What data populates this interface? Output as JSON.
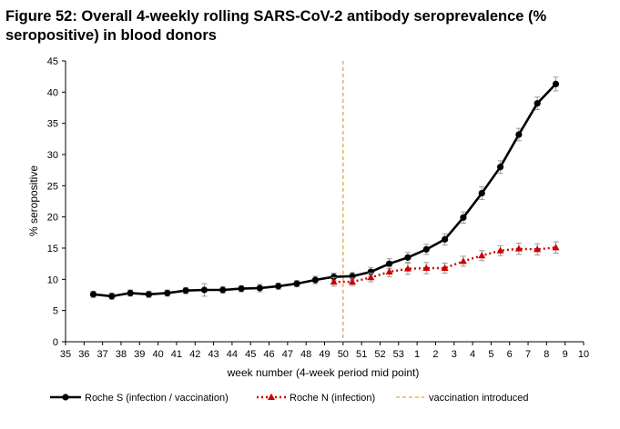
{
  "chart_data": {
    "type": "line",
    "title": "Figure 52: Overall 4-weekly rolling SARS-CoV-2 antibody seroprevalence (% seropositive) in blood donors",
    "xlabel": "week number (4-week period mid point)",
    "ylabel": "% seropositive",
    "ylim": [
      0,
      45
    ],
    "yticks": [
      0,
      5,
      10,
      15,
      20,
      25,
      30,
      35,
      40,
      45
    ],
    "categories": [
      "35",
      "36",
      "37",
      "38",
      "39",
      "40",
      "41",
      "42",
      "43",
      "44",
      "45",
      "46",
      "47",
      "48",
      "49",
      "50",
      "51",
      "52",
      "53",
      "1",
      "2",
      "3",
      "4",
      "5",
      "6",
      "7",
      "8",
      "9",
      "10"
    ],
    "vaccination_week": "50",
    "series": [
      {
        "name": "Roche S (infection / vaccination)",
        "color": "#000000",
        "style": "solid-circle",
        "x": [
          36.5,
          37.5,
          38.5,
          39.5,
          40.5,
          41.5,
          42.5,
          43.5,
          44.5,
          45.5,
          46.5,
          47.5,
          48.5,
          49.5,
          50.5,
          51.5,
          52.5,
          53.5,
          54.5,
          55.5,
          56.5,
          57.5,
          58.5,
          59.5,
          60.5,
          61.5
        ],
        "values": [
          7.6,
          7.3,
          7.8,
          7.6,
          7.8,
          8.2,
          8.3,
          8.3,
          8.5,
          8.6,
          8.9,
          9.3,
          9.9,
          10.4,
          10.5,
          11.2,
          12.5,
          13.5,
          14.8,
          16.4,
          19.9,
          23.8,
          28.0,
          33.2,
          38.2,
          41.3
        ],
        "errors": [
          0.5,
          0.5,
          0.5,
          0.5,
          0.5,
          0.5,
          1.0,
          0.5,
          0.5,
          0.6,
          0.5,
          0.5,
          0.6,
          0.6,
          0.6,
          0.7,
          0.8,
          0.8,
          0.8,
          0.9,
          0.9,
          1.0,
          1.0,
          1.0,
          1.0,
          1.1
        ]
      },
      {
        "name": "Roche N (infection)",
        "color": "#cc0000",
        "style": "dotted-triangle",
        "x": [
          49.5,
          50.5,
          51.5,
          52.5,
          53.5,
          54.5,
          55.5,
          56.5,
          57.5,
          58.5,
          59.5,
          60.5,
          61.5
        ],
        "values": [
          9.6,
          9.6,
          10.3,
          11.2,
          11.7,
          11.8,
          11.8,
          12.9,
          13.8,
          14.6,
          14.9,
          14.8,
          15.1
        ],
        "errors": [
          0.7,
          0.6,
          0.7,
          0.8,
          0.9,
          0.9,
          0.8,
          0.8,
          0.8,
          0.8,
          0.9,
          0.9,
          0.9
        ]
      }
    ],
    "legend": [
      {
        "label": "Roche S (infection / vaccination)"
      },
      {
        "label": "Roche N (infection)"
      },
      {
        "label": "vaccination introduced"
      }
    ]
  }
}
